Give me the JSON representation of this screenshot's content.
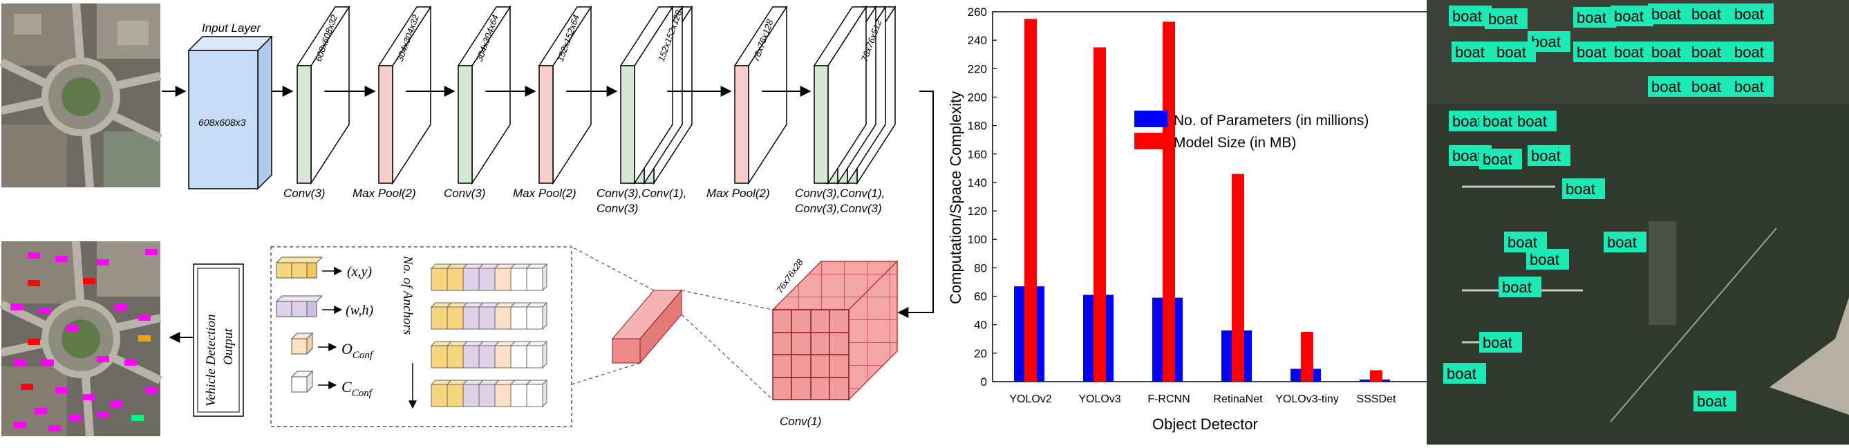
{
  "architecture": {
    "input_label": "Input Layer",
    "input_dims": "608x608x3",
    "blocks": [
      {
        "dims": "608x608x32",
        "caption": [
          "Conv(3)"
        ]
      },
      {
        "dims": "304x304x32",
        "caption": [
          "Max Pool(2)"
        ]
      },
      {
        "dims": "304x304x64",
        "caption": [
          "Conv(3)"
        ]
      },
      {
        "dims": "152x152x64",
        "caption": [
          "Max Pool(2)"
        ]
      },
      {
        "dims": "152x152x128",
        "caption": [
          "Conv(3),Conv(1),",
          "Conv(3)"
        ]
      },
      {
        "dims": "76x76x128",
        "caption": [
          "Max Pool(2)"
        ]
      },
      {
        "dims": "76x76x512",
        "caption": [
          "Conv(3),Conv(1),",
          "Conv(3),Conv(3)"
        ]
      }
    ],
    "output_cube_dims": "76x76x28",
    "output_cube_caption": "Conv(1)",
    "output_label_line1": "Vehicle Detection",
    "output_label_line2": "Output",
    "anchor_label": "No. of Anchors",
    "legend": {
      "xy": "(x,y)",
      "wh": "(w,h)",
      "oconf_main": "O",
      "oconf_sub": "Conf",
      "cconf_main": "C",
      "cconf_sub": "Conf"
    }
  },
  "colors": {
    "conv": "#d5e8d4",
    "pool": "#f8cecc",
    "input": "#c6dcf7",
    "cube": "#f19c9c",
    "param_bar": "#0000ff",
    "size_bar": "#ff0000",
    "box": "#1de9b6"
  },
  "chart_data": {
    "type": "bar",
    "categories": [
      "YOLOv2",
      "YOLOv3",
      "F-RCNN",
      "RetinaNet",
      "YOLOv3-tiny",
      "SSSDet"
    ],
    "series": [
      {
        "name": "No. of Parameters (in millions)",
        "values": [
          67,
          61,
          59,
          36,
          9,
          1.5
        ]
      },
      {
        "name": "Model Size (in MB)",
        "values": [
          255,
          235,
          253,
          146,
          35,
          8
        ]
      }
    ],
    "xlabel": "Object Detector",
    "ylabel": "Computation/Space Complexity",
    "ylim": [
      0,
      260
    ],
    "yticks": [
      "0",
      "20",
      "40",
      "60",
      "80",
      "100",
      "120",
      "140",
      "160",
      "180",
      "200",
      "220",
      "240",
      "260"
    ],
    "legend_position": "center-right",
    "grid": false
  },
  "detection": {
    "label": "boat"
  }
}
